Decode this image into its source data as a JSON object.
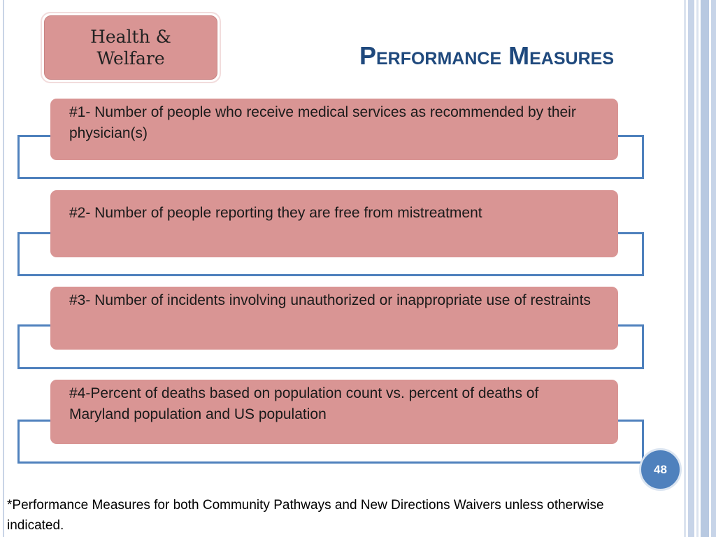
{
  "slide": {
    "tag": "Health & Welfare",
    "title": "Performance Measures",
    "page_number": "48",
    "footnote": "*Performance Measures for both Community Pathways and New Directions Waivers unless otherwise indicated."
  },
  "measures": [
    {
      "text": "#1- Number of people who receive medical services as recommended by their physician(s)"
    },
    {
      "text": "#2- Number of people reporting they are free from mistreatment"
    },
    {
      "text": "#3- Number of incidents involving unauthorized or inappropriate use of restraints"
    },
    {
      "text": "#4-Percent of deaths based on population count vs. percent of deaths of Maryland population and US population"
    }
  ],
  "colors": {
    "accent_blue": "#4f81bd",
    "title_blue": "#1f497d",
    "card_pink": "#d99594"
  }
}
